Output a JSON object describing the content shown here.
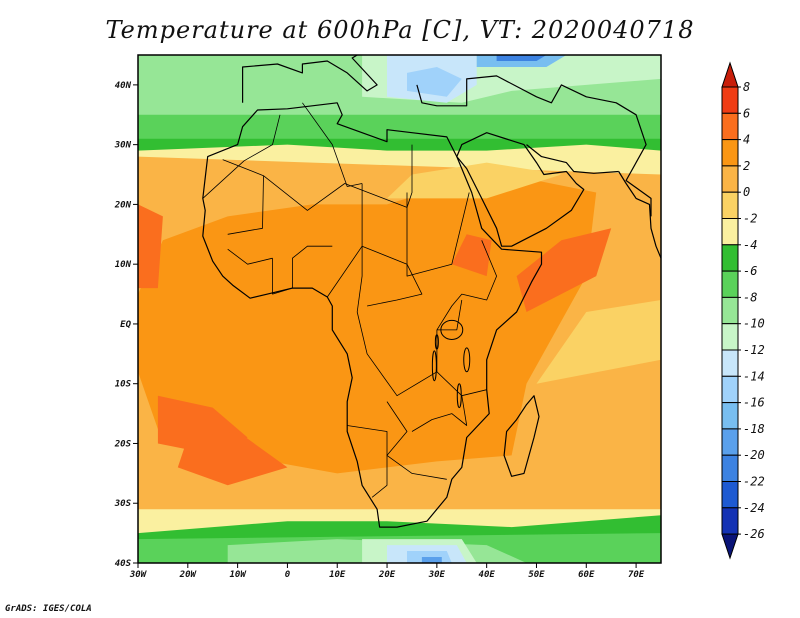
{
  "title": "Temperature at 600hPa [C], VT: 2020040718",
  "credit": "GrADS: IGES/COLA",
  "map": {
    "lon_range": [
      -30,
      75
    ],
    "lat_range": [
      -40,
      45
    ],
    "lon_ticks": [
      {
        "value": -30,
        "label": "30W"
      },
      {
        "value": -20,
        "label": "20W"
      },
      {
        "value": -10,
        "label": "10W"
      },
      {
        "value": 0,
        "label": "0"
      },
      {
        "value": 10,
        "label": "10E"
      },
      {
        "value": 20,
        "label": "20E"
      },
      {
        "value": 30,
        "label": "30E"
      },
      {
        "value": 40,
        "label": "40E"
      },
      {
        "value": 50,
        "label": "50E"
      },
      {
        "value": 60,
        "label": "60E"
      },
      {
        "value": 70,
        "label": "70E"
      }
    ],
    "lat_ticks": [
      {
        "value": 40,
        "label": "40N"
      },
      {
        "value": 30,
        "label": "30N"
      },
      {
        "value": 20,
        "label": "20N"
      },
      {
        "value": 10,
        "label": "10N"
      },
      {
        "value": 0,
        "label": "EQ"
      },
      {
        "value": -10,
        "label": "10S"
      },
      {
        "value": -20,
        "label": "20S"
      },
      {
        "value": -30,
        "label": "30S"
      },
      {
        "value": -40,
        "label": "40S"
      }
    ]
  },
  "colorbar": {
    "levels": [
      "8",
      "6",
      "4",
      "2",
      "0",
      "-2",
      "-4",
      "-6",
      "-8",
      "-10",
      "-12",
      "-14",
      "-16",
      "-18",
      "-20",
      "-22",
      "-24",
      "-26"
    ],
    "colors": [
      "#c81e0a",
      "#f03c14",
      "#fa6e1e",
      "#fa9614",
      "#fab446",
      "#fad264",
      "#faf0a0",
      "#32be32",
      "#5ad25a",
      "#96e696",
      "#c8f5c8",
      "#c8e6fa",
      "#a0d2fa",
      "#78bef0",
      "#5aa0eb",
      "#3c82e1",
      "#1e5ad2",
      "#1432b4",
      "#0a1478"
    ]
  },
  "field_colors": {
    "ocean_warm": "#fab446",
    "land_hot": "#fa9614",
    "hot_spot": "#fa6e1e",
    "mild": "#fad264",
    "cool": "#faf0a0",
    "green_dark": "#32be32",
    "green": "#5ad25a",
    "green_light": "#96e696",
    "mint": "#c8f5c8",
    "sky": "#c8e6fa",
    "blue_light": "#a0d2fa",
    "blue": "#78bef0",
    "blue_mid": "#5aa0eb",
    "blue_dark": "#3c82e1",
    "blue_deep": "#1e5ad2"
  }
}
